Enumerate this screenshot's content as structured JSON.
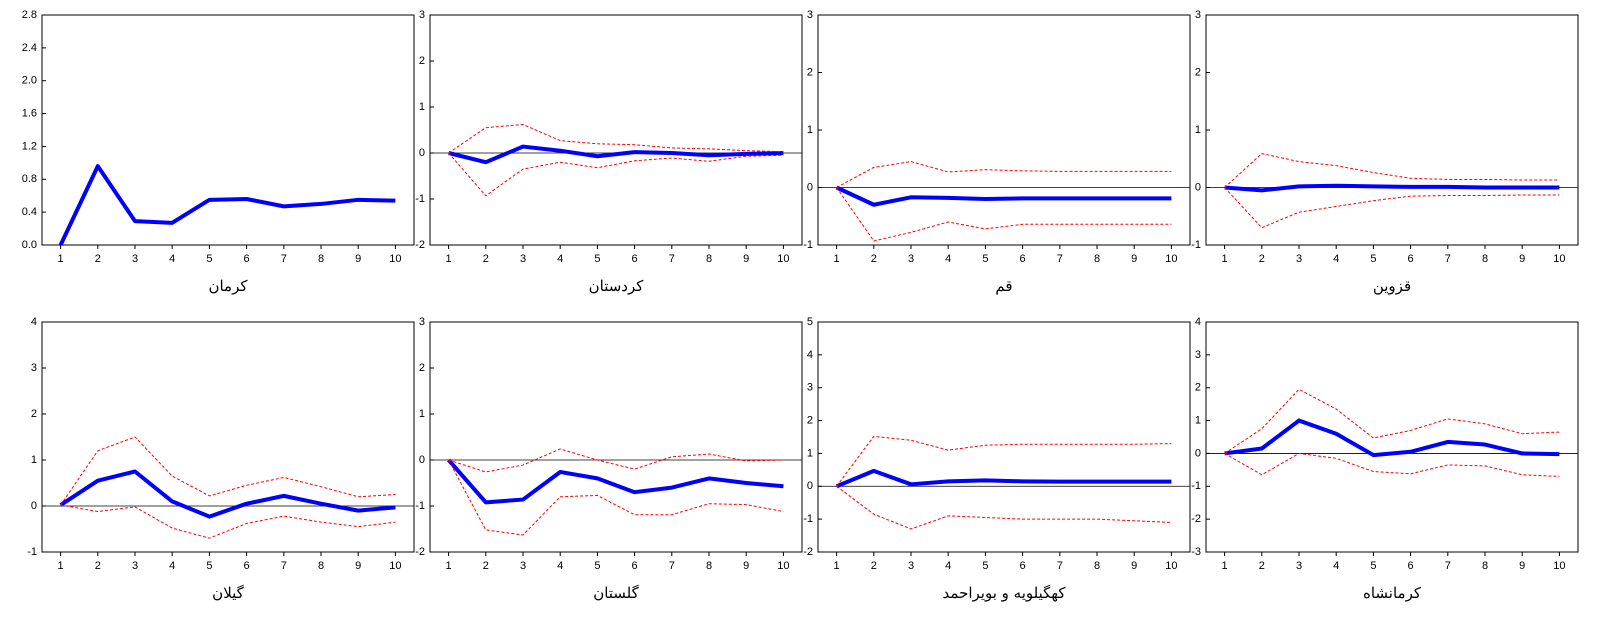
{
  "chart_data": [
    {
      "type": "line",
      "title": "کرمان",
      "x": [
        1,
        2,
        3,
        4,
        5,
        6,
        7,
        8,
        9,
        10
      ],
      "xlim": [
        0.5,
        10.5
      ],
      "xticks": [
        1,
        2,
        3,
        4,
        5,
        6,
        7,
        8,
        9,
        10
      ],
      "ylim": [
        0,
        2.8
      ],
      "yticks": [
        {
          "value": 0,
          "label": "0.0"
        },
        0.4,
        0.8,
        1.2,
        1.6,
        {
          "value": 2,
          "label": "2.0"
        },
        2.4,
        2.8
      ],
      "zero_line": false,
      "series": [
        {
          "color": "#0000ff",
          "style": "solid",
          "values": [
            0,
            0.96,
            0.29,
            0.27,
            0.55,
            0.56,
            0.47,
            0.5,
            0.55,
            0.54
          ]
        }
      ]
    },
    {
      "type": "line",
      "title": "کردستان",
      "x": [
        1,
        2,
        3,
        4,
        5,
        6,
        7,
        8,
        9,
        10
      ],
      "xlim": [
        0.5,
        10.5
      ],
      "xticks": [
        1,
        2,
        3,
        4,
        5,
        6,
        7,
        8,
        9,
        10
      ],
      "ylim": [
        -2,
        3
      ],
      "yticks": [
        -2,
        -1,
        0,
        1,
        2,
        3
      ],
      "zero_line": true,
      "series": [
        {
          "color": "#0000ff",
          "style": "solid",
          "values": [
            0,
            -0.2,
            0.14,
            0.05,
            -0.07,
            0.02,
            0,
            -0.05,
            -0.02,
            0
          ]
        },
        {
          "color": "#ff0000",
          "style": "dashed",
          "values": [
            0,
            0.55,
            0.62,
            0.27,
            0.2,
            0.18,
            0.11,
            0.09,
            0.05,
            0.03
          ]
        },
        {
          "color": "#ff0000",
          "style": "dashed",
          "values": [
            0,
            -0.93,
            -0.35,
            -0.2,
            -0.32,
            -0.17,
            -0.11,
            -0.18,
            -0.07,
            -0.05
          ]
        }
      ]
    },
    {
      "type": "line",
      "title": "قم",
      "x": [
        1,
        2,
        3,
        4,
        5,
        6,
        7,
        8,
        9,
        10
      ],
      "xlim": [
        0.5,
        10.5
      ],
      "xticks": [
        1,
        2,
        3,
        4,
        5,
        6,
        7,
        8,
        9,
        10
      ],
      "ylim": [
        -1,
        3
      ],
      "yticks": [
        -1,
        0,
        1,
        2,
        3
      ],
      "zero_line": true,
      "series": [
        {
          "color": "#0000ff",
          "style": "solid",
          "values": [
            0,
            -0.3,
            -0.17,
            -0.18,
            -0.2,
            -0.19,
            -0.19,
            -0.19,
            -0.19,
            -0.19
          ]
        },
        {
          "color": "#ff0000",
          "style": "dashed",
          "values": [
            0,
            0.35,
            0.45,
            0.27,
            0.31,
            0.29,
            0.28,
            0.28,
            0.28,
            0.28
          ]
        },
        {
          "color": "#ff0000",
          "style": "dashed",
          "values": [
            0,
            -0.93,
            -0.78,
            -0.6,
            -0.72,
            -0.64,
            -0.64,
            -0.64,
            -0.64,
            -0.64
          ]
        }
      ]
    },
    {
      "type": "line",
      "title": "قزوین",
      "x": [
        1,
        2,
        3,
        4,
        5,
        6,
        7,
        8,
        9,
        10
      ],
      "xlim": [
        0.5,
        10.5
      ],
      "xticks": [
        1,
        2,
        3,
        4,
        5,
        6,
        7,
        8,
        9,
        10
      ],
      "ylim": [
        -1,
        3
      ],
      "yticks": [
        -1,
        0,
        1,
        2,
        3
      ],
      "zero_line": true,
      "series": [
        {
          "color": "#0000ff",
          "style": "solid",
          "values": [
            0,
            -0.05,
            0.02,
            0.03,
            0.02,
            0.01,
            0.01,
            0,
            0,
            0
          ]
        },
        {
          "color": "#ff0000",
          "style": "dashed",
          "values": [
            0,
            0.59,
            0.45,
            0.38,
            0.26,
            0.16,
            0.14,
            0.14,
            0.13,
            0.13
          ]
        },
        {
          "color": "#ff0000",
          "style": "dashed",
          "values": [
            0,
            -0.7,
            -0.43,
            -0.33,
            -0.23,
            -0.15,
            -0.14,
            -0.14,
            -0.13,
            -0.13
          ]
        }
      ]
    },
    {
      "type": "line",
      "title": "گیلان",
      "x": [
        1,
        2,
        3,
        4,
        5,
        6,
        7,
        8,
        9,
        10
      ],
      "xlim": [
        0.5,
        10.5
      ],
      "xticks": [
        1,
        2,
        3,
        4,
        5,
        6,
        7,
        8,
        9,
        10
      ],
      "ylim": [
        -1,
        4
      ],
      "yticks": [
        -1,
        0,
        1,
        2,
        3,
        4
      ],
      "zero_line": true,
      "series": [
        {
          "color": "#0000ff",
          "style": "solid",
          "values": [
            0.02,
            0.55,
            0.75,
            0.1,
            -0.23,
            0.05,
            0.22,
            0.05,
            -0.1,
            -0.03
          ]
        },
        {
          "color": "#ff0000",
          "style": "dashed",
          "values": [
            0.02,
            1.2,
            1.5,
            0.65,
            0.22,
            0.45,
            0.62,
            0.42,
            0.2,
            0.25
          ]
        },
        {
          "color": "#ff0000",
          "style": "dashed",
          "values": [
            0.02,
            -0.12,
            -0.02,
            -0.48,
            -0.7,
            -0.38,
            -0.22,
            -0.35,
            -0.45,
            -0.35
          ]
        }
      ]
    },
    {
      "type": "line",
      "title": "گلستان",
      "x": [
        1,
        2,
        3,
        4,
        5,
        6,
        7,
        8,
        9,
        10
      ],
      "xlim": [
        0.5,
        10.5
      ],
      "xticks": [
        1,
        2,
        3,
        4,
        5,
        6,
        7,
        8,
        9,
        10
      ],
      "ylim": [
        -2,
        3
      ],
      "yticks": [
        -2,
        -1,
        0,
        1,
        2,
        3
      ],
      "zero_line": true,
      "series": [
        {
          "color": "#0000ff",
          "style": "solid",
          "values": [
            0,
            -0.92,
            -0.86,
            -0.26,
            -0.4,
            -0.7,
            -0.6,
            -0.4,
            -0.5,
            -0.57
          ]
        },
        {
          "color": "#ff0000",
          "style": "dashed",
          "values": [
            0,
            -0.26,
            -0.11,
            0.24,
            0,
            -0.2,
            0.07,
            0.13,
            -0.02,
            0
          ]
        },
        {
          "color": "#ff0000",
          "style": "dashed",
          "values": [
            0,
            -1.52,
            -1.63,
            -0.8,
            -0.77,
            -1.19,
            -1.19,
            -0.95,
            -0.97,
            -1.12
          ]
        }
      ]
    },
    {
      "type": "line",
      "title": "کهگیلویه و بویراحمد",
      "x": [
        1,
        2,
        3,
        4,
        5,
        6,
        7,
        8,
        9,
        10
      ],
      "xlim": [
        0.5,
        10.5
      ],
      "xticks": [
        1,
        2,
        3,
        4,
        5,
        6,
        7,
        8,
        9,
        10
      ],
      "ylim": [
        -2,
        5
      ],
      "yticks": [
        -2,
        -1,
        0,
        1,
        2,
        3,
        4,
        5
      ],
      "zero_line": true,
      "series": [
        {
          "color": "#0000ff",
          "style": "solid",
          "values": [
            0,
            0.47,
            0.06,
            0.15,
            0.18,
            0.15,
            0.14,
            0.14,
            0.14,
            0.14
          ]
        },
        {
          "color": "#ff0000",
          "style": "dashed",
          "values": [
            0,
            1.52,
            1.4,
            1.1,
            1.25,
            1.28,
            1.28,
            1.28,
            1.28,
            1.3
          ]
        },
        {
          "color": "#ff0000",
          "style": "dashed",
          "values": [
            0,
            -0.85,
            -1.3,
            -0.9,
            -0.95,
            -1,
            -1,
            -1,
            -1.05,
            -1.1
          ]
        }
      ]
    },
    {
      "type": "line",
      "title": "کرمانشاه",
      "x": [
        1,
        2,
        3,
        4,
        5,
        6,
        7,
        8,
        9,
        10
      ],
      "xlim": [
        0.5,
        10.5
      ],
      "xticks": [
        1,
        2,
        3,
        4,
        5,
        6,
        7,
        8,
        9,
        10
      ],
      "ylim": [
        -3,
        4
      ],
      "yticks": [
        -3,
        -2,
        -1,
        0,
        1,
        2,
        3,
        4
      ],
      "zero_line": true,
      "series": [
        {
          "color": "#0000ff",
          "style": "solid",
          "values": [
            0,
            0.15,
            1,
            0.6,
            -0.05,
            0.05,
            0.35,
            0.27,
            0,
            -0.02
          ]
        },
        {
          "color": "#ff0000",
          "style": "dashed",
          "values": [
            0,
            0.75,
            1.95,
            1.35,
            0.47,
            0.7,
            1.05,
            0.9,
            0.6,
            0.65
          ]
        },
        {
          "color": "#ff0000",
          "style": "dashed",
          "values": [
            0,
            -0.65,
            0,
            -0.15,
            -0.55,
            -0.62,
            -0.35,
            -0.38,
            -0.65,
            -0.7
          ]
        }
      ]
    }
  ]
}
